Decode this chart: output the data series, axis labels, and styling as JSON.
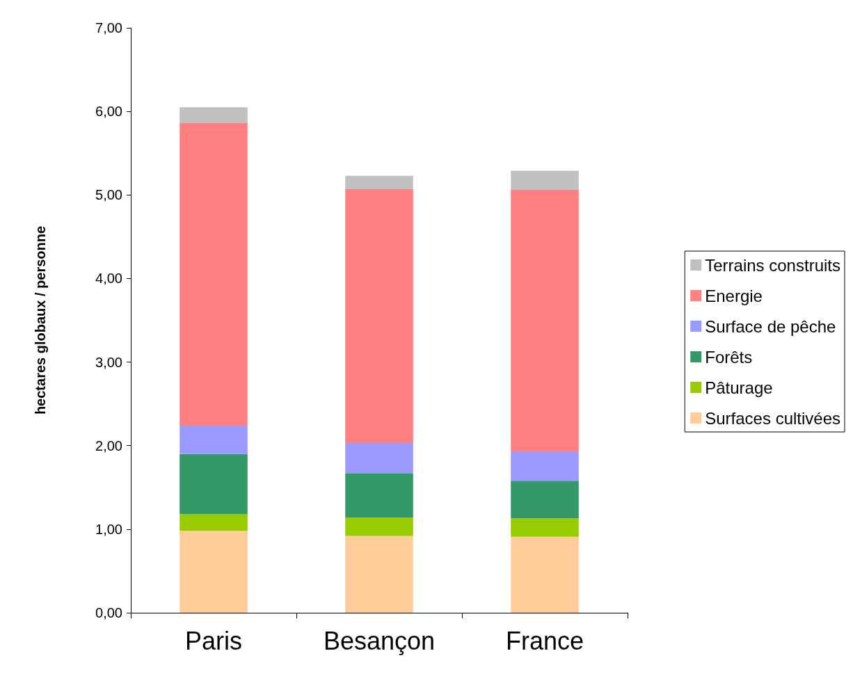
{
  "chart_data": {
    "type": "bar",
    "stacked": true,
    "ylabel": "hectares globaux / personne",
    "categories": [
      "Paris",
      "Besançon",
      "France"
    ],
    "series": [
      {
        "name": "Surfaces cultivées",
        "color": "#ffcc99",
        "values": [
          0.98,
          0.92,
          0.91
        ]
      },
      {
        "name": "Pâturage",
        "color": "#99cc00",
        "values": [
          0.2,
          0.22,
          0.22
        ]
      },
      {
        "name": "Forêts",
        "color": "#339966",
        "values": [
          0.72,
          0.53,
          0.45
        ]
      },
      {
        "name": "Surface de pêche",
        "color": "#9999ff",
        "values": [
          0.34,
          0.36,
          0.35
        ]
      },
      {
        "name": "Energie",
        "color": "#ff8080",
        "values": [
          3.62,
          3.04,
          3.13
        ]
      },
      {
        "name": "Terrains construits",
        "color": "#c0c0c0",
        "values": [
          0.19,
          0.16,
          0.23
        ]
      }
    ],
    "ylim": [
      0,
      7
    ],
    "yticks": [
      {
        "value": 0,
        "label": "0,00"
      },
      {
        "value": 1,
        "label": "1,00"
      },
      {
        "value": 2,
        "label": "2,00"
      },
      {
        "value": 3,
        "label": "3,00"
      },
      {
        "value": 4,
        "label": "4,00"
      },
      {
        "value": 5,
        "label": "5,00"
      },
      {
        "value": 6,
        "label": "6,00"
      },
      {
        "value": 7,
        "label": "7,00"
      }
    ],
    "grid": false,
    "legend": "right"
  }
}
